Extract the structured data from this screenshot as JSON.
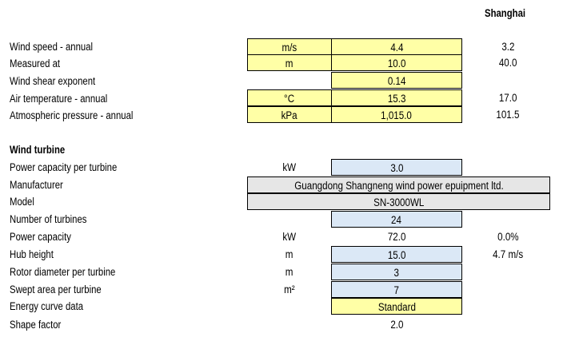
{
  "header": {
    "city": "Shanghai"
  },
  "climate_rows": [
    {
      "label": "Wind speed - annual",
      "unit": "m/s",
      "value": "4.4",
      "ref": "3.2"
    },
    {
      "label": "Measured at",
      "unit": "m",
      "value": "10.0",
      "ref": "40.0"
    },
    {
      "label": "Wind shear exponent",
      "unit": "",
      "value": "0.14",
      "ref": ""
    },
    {
      "label": "Air temperature - annual",
      "unit": "°C",
      "value": "15.3",
      "ref": "17.0"
    },
    {
      "label": "Atmospheric pressure - annual",
      "unit": "kPa",
      "value": "1,015.0",
      "ref": "101.5"
    }
  ],
  "turbine": {
    "section_title": "Wind turbine",
    "rows": [
      {
        "label": "Power capacity per turbine",
        "unit": "kW",
        "value": "3.0",
        "ref": ""
      },
      {
        "label": "Manufacturer",
        "unit": "",
        "value": "Guangdong Shangneng wind power epuipment ltd.",
        "ref": ""
      },
      {
        "label": "Model",
        "unit": "",
        "value": "SN-3000WL",
        "ref": ""
      },
      {
        "label": "Number of turbines",
        "unit": "",
        "value": "24",
        "ref": ""
      },
      {
        "label": "Power capacity",
        "unit": "kW",
        "value": "72.0",
        "ref": "0.0%"
      },
      {
        "label": "Hub height",
        "unit": "m",
        "value": "15.0",
        "ref": "4.7 m/s"
      },
      {
        "label": "Rotor diameter per turbine",
        "unit": "m",
        "value": "3",
        "ref": ""
      },
      {
        "label": "Swept area per turbine",
        "unit": "m²",
        "value": "7",
        "ref": ""
      },
      {
        "label": "Energy curve data",
        "unit": "",
        "value": "Standard",
        "ref": ""
      },
      {
        "label": "Shape factor",
        "unit": "",
        "value": "2.0",
        "ref": ""
      }
    ]
  },
  "colors": {
    "input": "#ffffa6",
    "blue_input": "#dbe8f6",
    "grey_cell": "#e6e6e6"
  }
}
